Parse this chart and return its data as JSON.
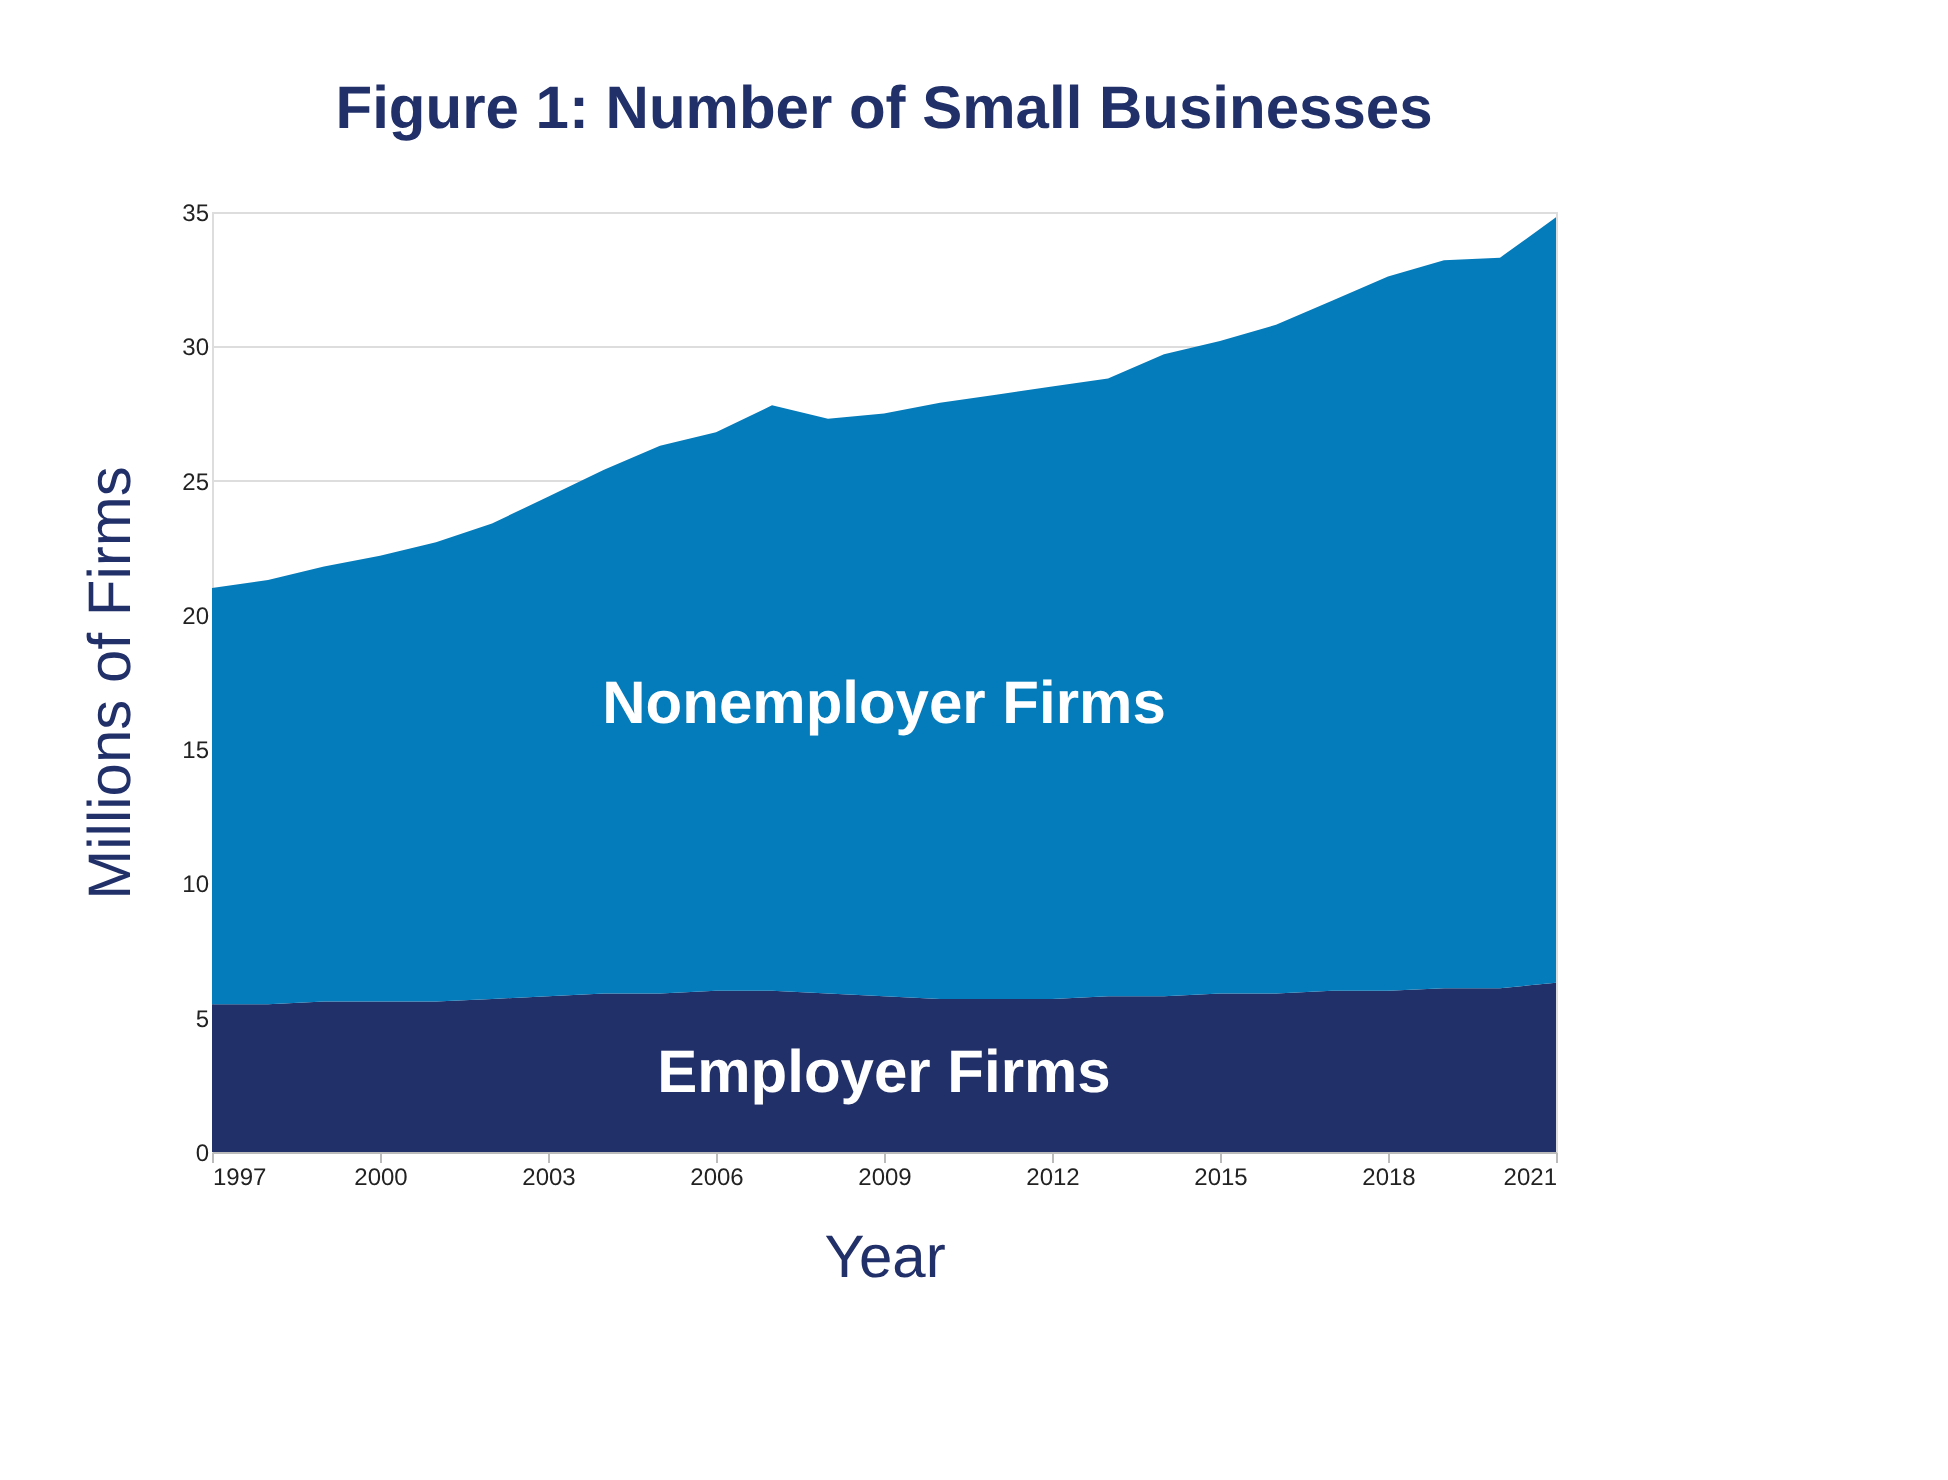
{
  "chart_data": {
    "type": "area",
    "title": "Figure 1: Number of Small Businesses",
    "xlabel": "Year",
    "ylabel": "Millions of Firms",
    "x": [
      1997,
      1998,
      1999,
      2000,
      2001,
      2002,
      2003,
      2004,
      2005,
      2006,
      2007,
      2008,
      2009,
      2010,
      2011,
      2012,
      2013,
      2014,
      2015,
      2016,
      2017,
      2018,
      2019,
      2020,
      2021
    ],
    "stacked": true,
    "series": [
      {
        "name": "Employer Firms",
        "color": "#22306a",
        "values": [
          5.5,
          5.5,
          5.6,
          5.6,
          5.6,
          5.7,
          5.8,
          5.9,
          5.9,
          6.0,
          6.0,
          5.9,
          5.8,
          5.7,
          5.7,
          5.7,
          5.8,
          5.8,
          5.9,
          5.9,
          6.0,
          6.0,
          6.1,
          6.1,
          6.3
        ]
      },
      {
        "name": "Nonemployer Firms",
        "color": "#047bbb",
        "values": [
          15.5,
          15.8,
          16.2,
          16.6,
          17.1,
          17.7,
          18.6,
          19.5,
          20.4,
          20.8,
          21.8,
          21.4,
          21.7,
          22.2,
          22.5,
          22.8,
          23.0,
          23.9,
          24.3,
          24.9,
          25.7,
          26.6,
          27.1,
          27.2,
          28.5
        ]
      }
    ],
    "xlim": [
      1997,
      2021
    ],
    "xticks": [
      1997,
      2000,
      2003,
      2006,
      2009,
      2012,
      2015,
      2018,
      2021
    ],
    "ylim": [
      0,
      35
    ],
    "yticks": [
      0,
      5,
      10,
      15,
      20,
      25,
      30,
      35
    ],
    "grid": "y"
  }
}
